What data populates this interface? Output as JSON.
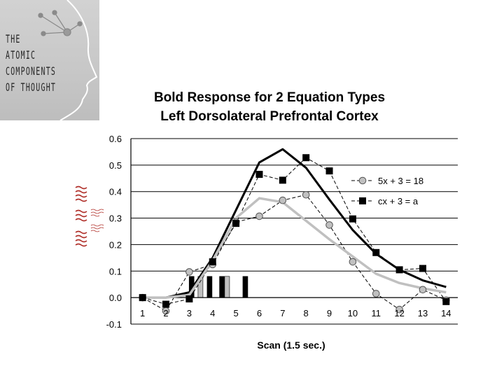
{
  "logo": {
    "text": "THE\nATOMIC\nCOMPONENTS\nOF THOUGHT"
  },
  "chart_data": {
    "type": "line",
    "title": "Bold Response for 2 Equation Types",
    "subtitle": "Left Dorsolateral Prefrontal Cortex",
    "xlabel": "Scan (1.5 sec.)",
    "ylabel": "",
    "x": [
      1,
      2,
      3,
      4,
      5,
      6,
      7,
      8,
      9,
      10,
      11,
      12,
      13,
      14
    ],
    "ylim": [
      -0.1,
      0.6
    ],
    "yticks": [
      "0.6",
      "0.5",
      "0.4",
      "0.3",
      "0.2",
      "0.1",
      "0.0",
      "-0.1"
    ],
    "ytick_values": [
      0.6,
      0.5,
      0.4,
      0.3,
      0.2,
      0.1,
      0.0,
      -0.1
    ],
    "xticks": [
      "1",
      "2",
      "3",
      "4",
      "5",
      "6",
      "7",
      "8",
      "9",
      "10",
      "11",
      "12",
      "13",
      "14"
    ],
    "grid": true,
    "legend_position": "right",
    "series": [
      {
        "name": "5x + 3 = 18",
        "marker": "circle",
        "line": "dashed",
        "color": "#000000",
        "marker_color": "#c0c0c0",
        "values": [
          0.0,
          -0.05,
          0.097,
          0.125,
          0.285,
          0.307,
          0.367,
          0.388,
          0.274,
          0.135,
          0.015,
          -0.045,
          0.03,
          -0.01
        ]
      },
      {
        "name": "cx + 3 = a",
        "marker": "square",
        "line": "dashed",
        "color": "#000000",
        "marker_color": "#000000",
        "values": [
          0.0,
          -0.025,
          -0.005,
          0.135,
          0.28,
          0.465,
          0.443,
          0.528,
          0.478,
          0.297,
          0.17,
          0.105,
          0.11,
          -0.015
        ]
      },
      {
        "name": "",
        "marker": "none",
        "line": "solid-thick",
        "color": "#000000",
        "values": [
          0.0,
          0.0,
          0.02,
          0.15,
          0.33,
          0.51,
          0.56,
          0.49,
          0.37,
          0.255,
          0.165,
          0.105,
          0.065,
          0.04
        ]
      },
      {
        "name": "",
        "marker": "none",
        "line": "solid-thick",
        "color": "#c0c0c0",
        "values": [
          0.0,
          0.0,
          0.01,
          0.14,
          0.3,
          0.375,
          0.36,
          0.29,
          0.22,
          0.155,
          0.09,
          0.055,
          0.035,
          0.02
        ]
      }
    ],
    "stimulus_bars": [
      {
        "x": 3.1,
        "fill": "#000000"
      },
      {
        "x": 3.48,
        "fill": "#c0c0c0"
      },
      {
        "x": 3.87,
        "fill": "#000000"
      },
      {
        "x": 4.4,
        "fill": "#000000"
      },
      {
        "x": 4.62,
        "fill": "#c0c0c0"
      },
      {
        "x": 5.4,
        "fill": "#000000"
      }
    ],
    "stimulus_bar_height": 0.08
  }
}
